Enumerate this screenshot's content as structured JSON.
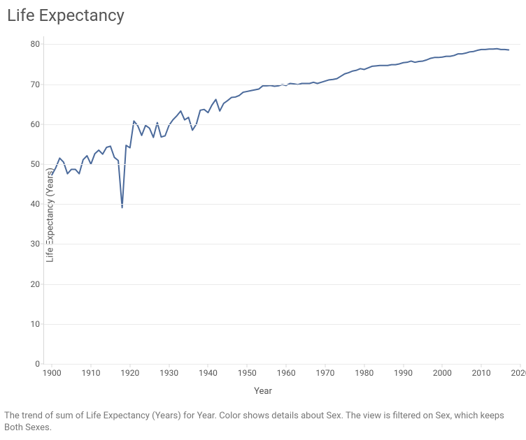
{
  "chart": {
    "type": "line",
    "title": "Life Expectancy",
    "xlabel": "Year",
    "ylabel": "Life Expectancy (Years)",
    "caption": "The trend of sum of Life Expectancy (Years) for Year.  Color shows details about Sex. The view is filtered on Sex, which keeps Both Sexes.",
    "line_color": "#4b6a9b",
    "line_width": 2,
    "background_color": "#ffffff",
    "grid_color": "#ebebeb",
    "axis_color": "#d8d8d8",
    "title_color": "#555555",
    "label_color": "#555555",
    "tick_color": "#555555",
    "caption_color": "#777777",
    "title_fontsize": 24,
    "label_fontsize": 13,
    "tick_fontsize": 12,
    "caption_fontsize": 13,
    "xlim": [
      1898,
      2020
    ],
    "ylim": [
      0,
      82
    ],
    "xtick_step": 10,
    "xtick_start": 1900,
    "xtick_end": 2020,
    "ytick_step": 10,
    "ytick_start": 0,
    "ytick_end": 80,
    "series": {
      "years": [
        1900,
        1901,
        1902,
        1903,
        1904,
        1905,
        1906,
        1907,
        1908,
        1909,
        1910,
        1911,
        1912,
        1913,
        1914,
        1915,
        1916,
        1917,
        1918,
        1919,
        1920,
        1921,
        1922,
        1923,
        1924,
        1925,
        1926,
        1927,
        1928,
        1929,
        1930,
        1931,
        1932,
        1933,
        1934,
        1935,
        1936,
        1937,
        1938,
        1939,
        1940,
        1941,
        1942,
        1943,
        1944,
        1945,
        1946,
        1947,
        1948,
        1949,
        1950,
        1951,
        1952,
        1953,
        1954,
        1955,
        1956,
        1957,
        1958,
        1959,
        1960,
        1961,
        1962,
        1963,
        1964,
        1965,
        1966,
        1967,
        1968,
        1969,
        1970,
        1971,
        1972,
        1973,
        1974,
        1975,
        1976,
        1977,
        1978,
        1979,
        1980,
        1981,
        1982,
        1983,
        1984,
        1985,
        1986,
        1987,
        1988,
        1989,
        1990,
        1991,
        1992,
        1993,
        1994,
        1995,
        1996,
        1997,
        1998,
        1999,
        2000,
        2001,
        2002,
        2003,
        2004,
        2005,
        2006,
        2007,
        2008,
        2009,
        2010,
        2011,
        2012,
        2013,
        2014,
        2015,
        2016,
        2017
      ],
      "values": [
        47.3,
        49.1,
        51.5,
        50.5,
        47.6,
        48.7,
        48.7,
        47.6,
        51.1,
        52.1,
        50.0,
        52.6,
        53.5,
        52.5,
        54.2,
        54.5,
        51.7,
        50.9,
        39.1,
        54.7,
        54.1,
        60.8,
        59.6,
        57.2,
        59.7,
        59.0,
        56.7,
        60.4,
        56.8,
        57.1,
        59.7,
        61.1,
        62.1,
        63.3,
        61.1,
        61.7,
        58.5,
        60.0,
        63.5,
        63.7,
        62.9,
        64.8,
        66.2,
        63.3,
        65.2,
        65.9,
        66.7,
        66.8,
        67.2,
        68.0,
        68.2,
        68.4,
        68.6,
        68.8,
        69.6,
        69.6,
        69.7,
        69.5,
        69.6,
        69.9,
        69.7,
        70.2,
        70.1,
        69.9,
        70.2,
        70.2,
        70.2,
        70.5,
        70.2,
        70.5,
        70.8,
        71.1,
        71.2,
        71.4,
        72.0,
        72.6,
        72.9,
        73.3,
        73.5,
        73.9,
        73.7,
        74.1,
        74.5,
        74.6,
        74.7,
        74.7,
        74.7,
        74.9,
        74.9,
        75.1,
        75.4,
        75.5,
        75.8,
        75.5,
        75.7,
        75.8,
        76.1,
        76.5,
        76.7,
        76.7,
        76.8,
        77.0,
        77.0,
        77.2,
        77.6,
        77.6,
        77.8,
        78.1,
        78.2,
        78.5,
        78.7,
        78.7,
        78.8,
        78.8,
        78.9,
        78.7,
        78.7,
        78.6
      ]
    }
  }
}
